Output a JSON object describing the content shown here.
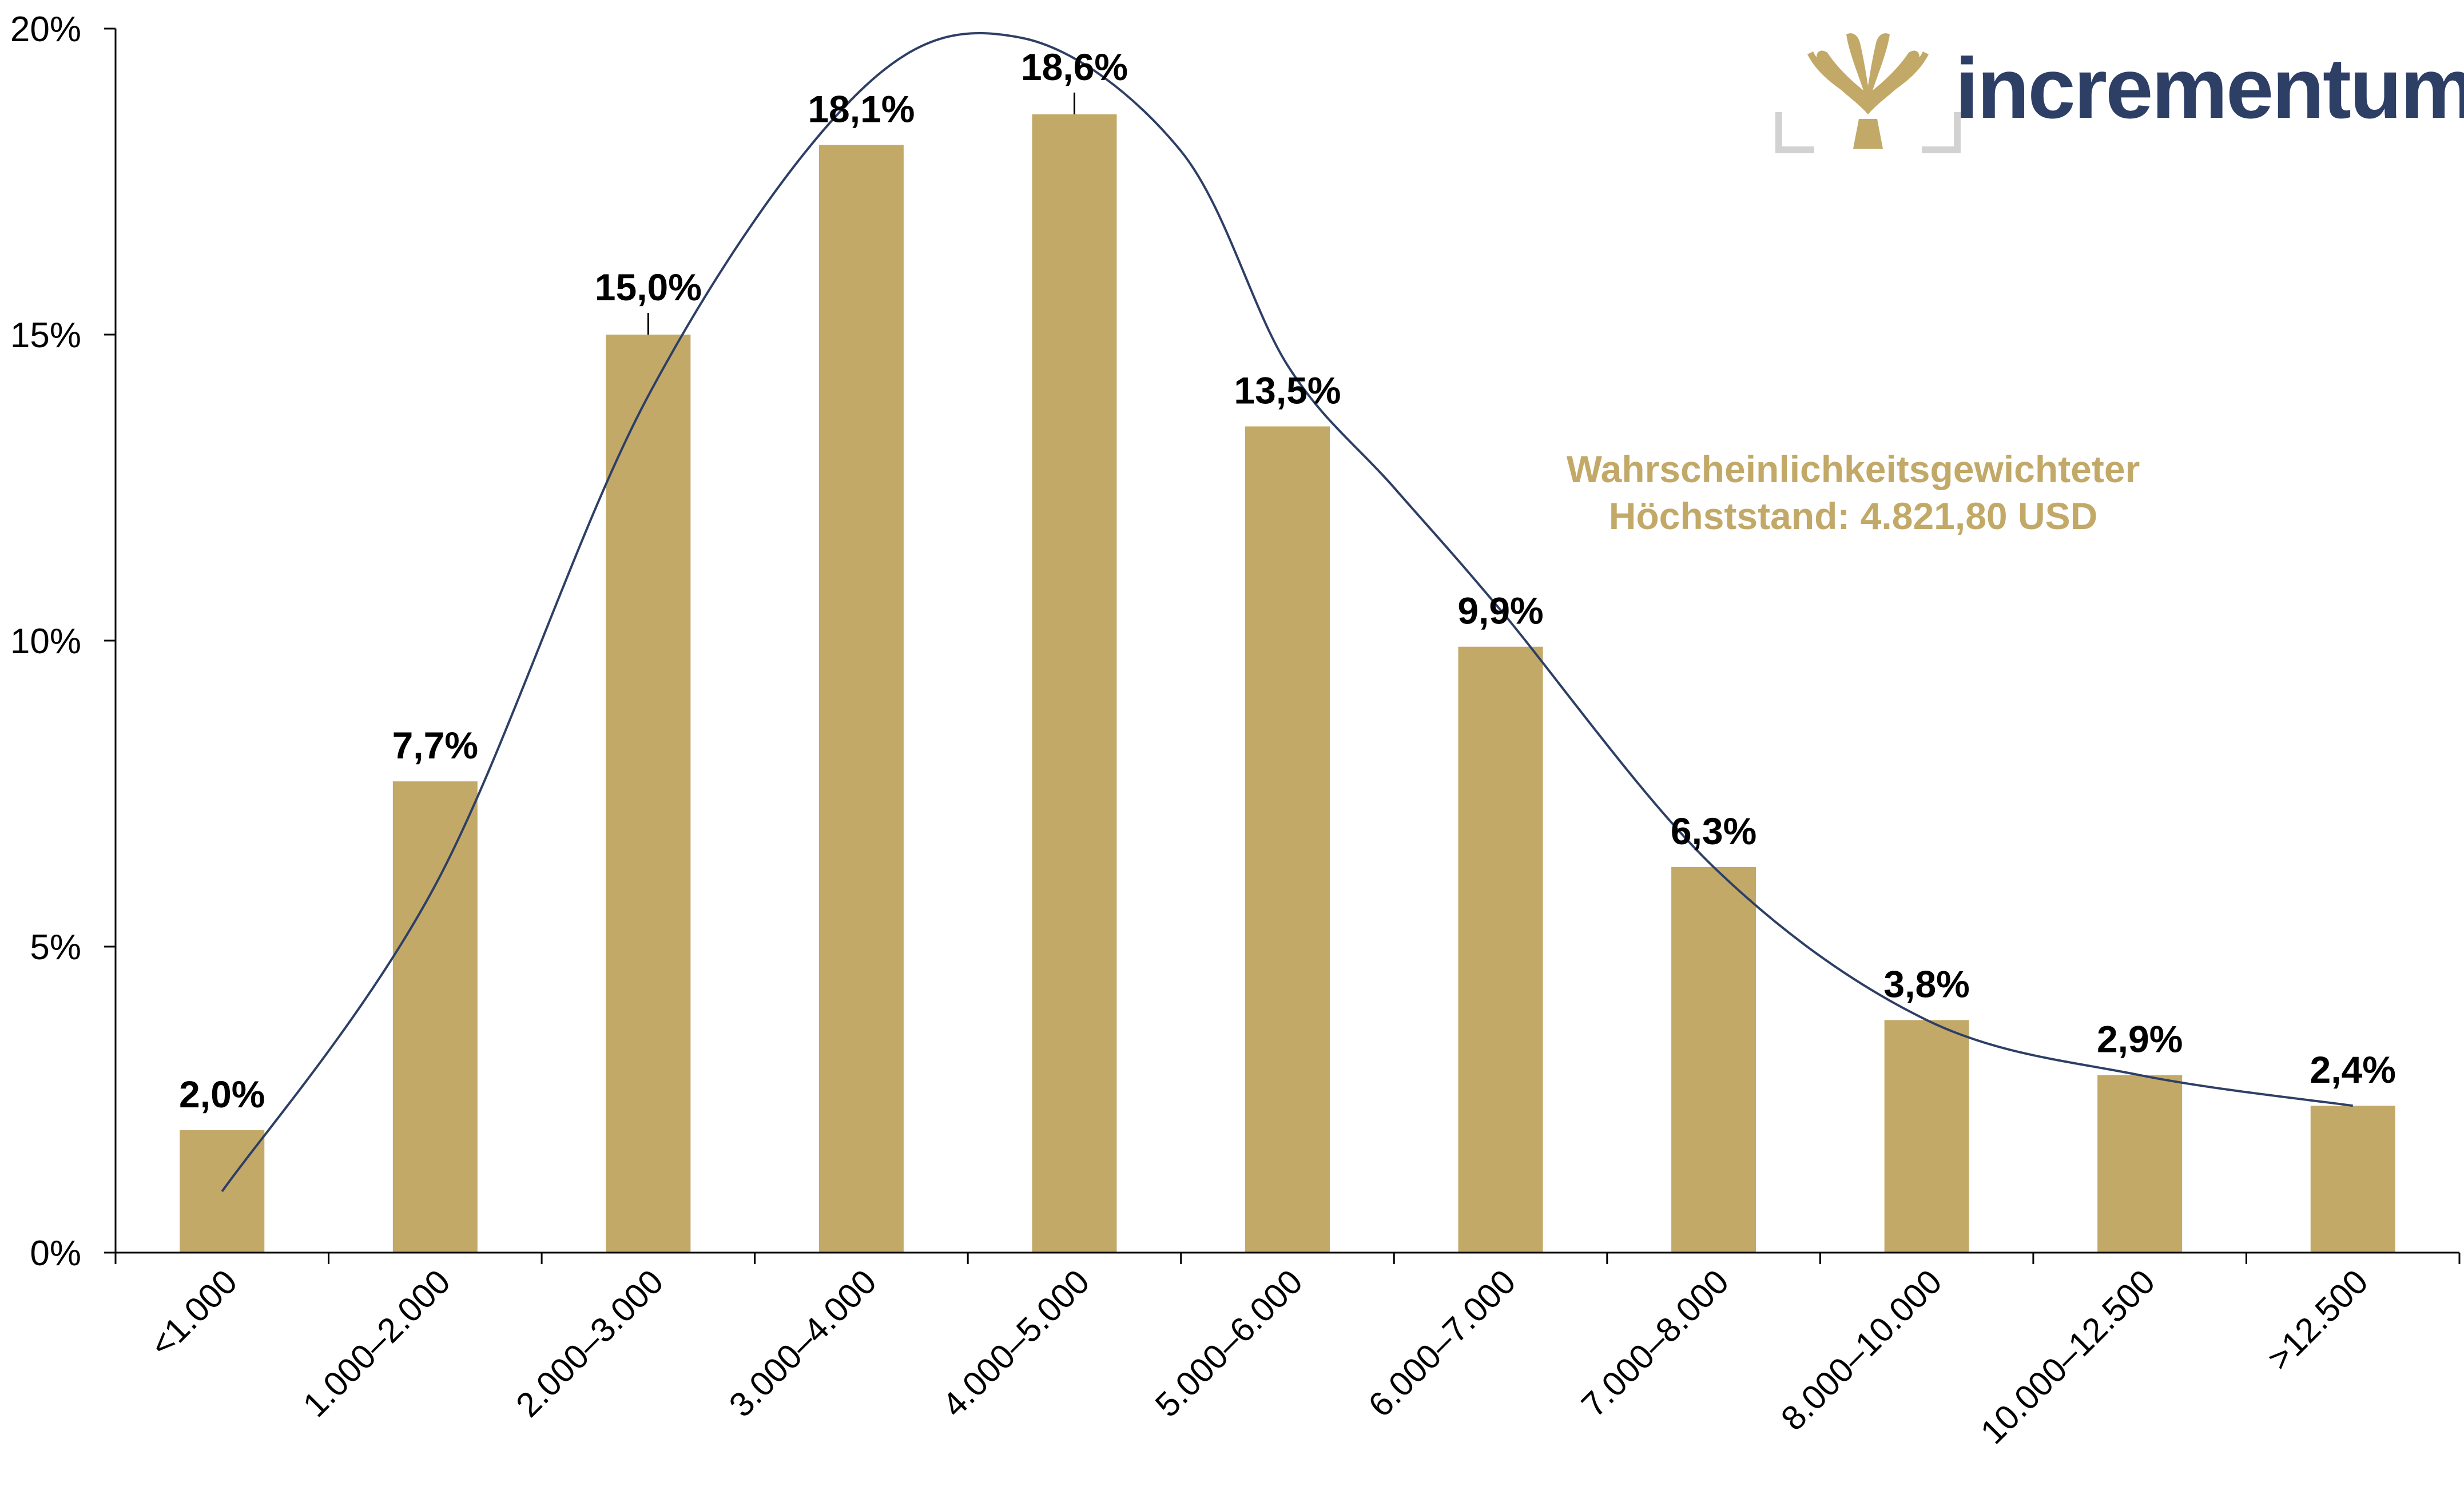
{
  "brand": {
    "name": "incrementum",
    "logo_icon": "tree-logo-icon",
    "text_color": "#2e3f66",
    "logo_color": "#c2a968",
    "frame_color": "#d2d2d2"
  },
  "chart_data": {
    "type": "bar",
    "categories": [
      "<1.000",
      "1.000–2.000",
      "2.000–3.000",
      "3.000–4.000",
      "4.000–5.000",
      "5.000–6.000",
      "6.000–7.000",
      "7.000–8.000",
      "8.000–10.000",
      "10.000–12.500",
      ">12.500"
    ],
    "values": [
      2.0,
      7.7,
      15.0,
      18.1,
      18.6,
      13.5,
      9.9,
      6.3,
      3.8,
      2.9,
      2.4
    ],
    "data_labels": [
      "2,0%",
      "7,7%",
      "15,0%",
      "18,1%",
      "18,6%",
      "13,5%",
      "9,9%",
      "6,3%",
      "3,8%",
      "2,9%",
      "2,4%"
    ],
    "ylim": [
      0,
      20
    ],
    "yticks": [
      0,
      5,
      10,
      15,
      20
    ],
    "ytick_labels": [
      "0%",
      "5%",
      "10%",
      "15%",
      "20%"
    ],
    "grid": false,
    "bar_color": "#c2a968",
    "curve": {
      "color": "#2e3f66",
      "points": [
        {
          "x": 0.0,
          "y": 1.0
        },
        {
          "x": 1.0,
          "y": 6.0
        },
        {
          "x": 2.0,
          "y": 14.0
        },
        {
          "x": 3.0,
          "y": 19.0
        },
        {
          "x": 3.75,
          "y": 19.85
        },
        {
          "x": 4.5,
          "y": 18.0
        },
        {
          "x": 5.0,
          "y": 14.5
        },
        {
          "x": 5.5,
          "y": 12.5
        },
        {
          "x": 6.0,
          "y": 10.5
        },
        {
          "x": 7.0,
          "y": 6.3
        },
        {
          "x": 8.0,
          "y": 3.8
        },
        {
          "x": 9.0,
          "y": 2.9
        },
        {
          "x": 10.0,
          "y": 2.4
        }
      ]
    },
    "annotation": {
      "lines": [
        "Wahrscheinlichkeitsgewichteter",
        "Höchststand: 4.821,80 USD"
      ],
      "color": "#c2a968"
    }
  }
}
